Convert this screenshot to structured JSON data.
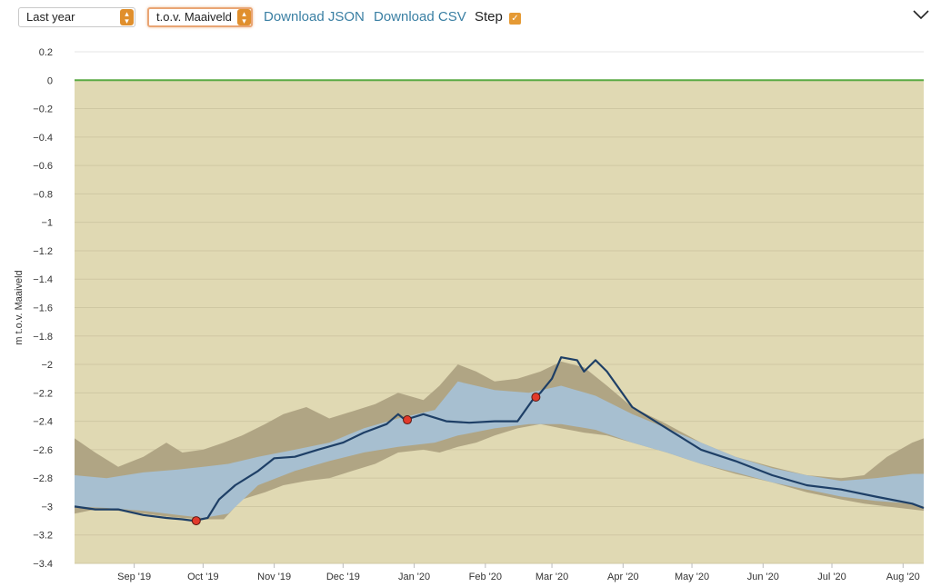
{
  "toolbar": {
    "period_select": {
      "value": "Last year"
    },
    "reference_select": {
      "value": "t.o.v. Maaiveld"
    },
    "download_json": "Download JSON",
    "download_csv": "Download CSV",
    "step_label": "Step",
    "step_checked": true
  },
  "chart_data": {
    "type": "area",
    "title": "",
    "ylabel": "m t.o.v. Maaiveld",
    "xlabel": "",
    "ylim": [
      -3.4,
      0.2
    ],
    "xlim": [
      "2019-08-06",
      "2020-08-10"
    ],
    "yticks": [
      "0.2",
      "0",
      "−0.2",
      "−0.4",
      "−0.6",
      "−0.8",
      "−1",
      "−1.2",
      "−1.4",
      "−1.6",
      "−1.8",
      "−2",
      "−2.2",
      "−2.4",
      "−2.6",
      "−2.8",
      "−3",
      "−3.2",
      "−3.4"
    ],
    "ytick_values": [
      0.2,
      0,
      -0.2,
      -0.4,
      -0.6,
      -0.8,
      -1,
      -1.2,
      -1.4,
      -1.6,
      -1.8,
      -2,
      -2.2,
      -2.4,
      -2.6,
      -2.8,
      -3,
      -3.2,
      -3.4
    ],
    "xticks": [
      "Sep '19",
      "Oct '19",
      "Nov '19",
      "Dec '19",
      "Jan '20",
      "Feb '20",
      "Mar '20",
      "Apr '20",
      "May '20",
      "Jun '20",
      "Jul '20",
      "Aug '20"
    ],
    "xtick_dates": [
      "2019-09-01",
      "2019-10-01",
      "2019-11-01",
      "2019-12-01",
      "2020-01-01",
      "2020-02-01",
      "2020-03-01",
      "2020-04-01",
      "2020-05-01",
      "2020-06-01",
      "2020-07-01",
      "2020-08-01"
    ],
    "colors": {
      "plot_background": "#e0d9b3",
      "outer_band": "#b0a584",
      "inner_band": "#a7bfd0",
      "line": "#1e3f66",
      "surface_line": "#5aaa44",
      "marker": "#e23a2b"
    },
    "surface_level": 0,
    "series": [
      {
        "kind": "outer_band",
        "points": [
          [
            "2019-08-06",
            -2.52,
            -3.05
          ],
          [
            "2019-08-15",
            -2.62,
            -3.02
          ],
          [
            "2019-08-25",
            -2.72,
            -3.03
          ],
          [
            "2019-09-05",
            -2.65,
            -3.05
          ],
          [
            "2019-09-15",
            -2.55,
            -3.07
          ],
          [
            "2019-09-22",
            -2.62,
            -3.08
          ],
          [
            "2019-10-01",
            -2.6,
            -3.09
          ],
          [
            "2019-10-10",
            -2.55,
            -3.09
          ],
          [
            "2019-10-18",
            -2.5,
            -2.95
          ],
          [
            "2019-10-28",
            -2.42,
            -2.9
          ],
          [
            "2019-11-05",
            -2.35,
            -2.85
          ],
          [
            "2019-11-15",
            -2.3,
            -2.82
          ],
          [
            "2019-11-25",
            -2.38,
            -2.8
          ],
          [
            "2019-12-05",
            -2.33,
            -2.75
          ],
          [
            "2019-12-15",
            -2.28,
            -2.7
          ],
          [
            "2019-12-25",
            -2.2,
            -2.62
          ],
          [
            "2020-01-05",
            -2.25,
            -2.6
          ],
          [
            "2020-01-12",
            -2.15,
            -2.62
          ],
          [
            "2020-01-20",
            -2.0,
            -2.58
          ],
          [
            "2020-01-28",
            -2.05,
            -2.55
          ],
          [
            "2020-02-05",
            -2.12,
            -2.5
          ],
          [
            "2020-02-15",
            -2.1,
            -2.45
          ],
          [
            "2020-02-25",
            -2.05,
            -2.42
          ],
          [
            "2020-03-05",
            -1.98,
            -2.45
          ],
          [
            "2020-03-15",
            -2.02,
            -2.48
          ],
          [
            "2020-03-25",
            -2.15,
            -2.5
          ],
          [
            "2020-04-05",
            -2.3,
            -2.55
          ],
          [
            "2020-04-20",
            -2.42,
            -2.62
          ],
          [
            "2020-05-05",
            -2.55,
            -2.7
          ],
          [
            "2020-05-20",
            -2.65,
            -2.77
          ],
          [
            "2020-06-05",
            -2.72,
            -2.83
          ],
          [
            "2020-06-20",
            -2.78,
            -2.9
          ],
          [
            "2020-07-05",
            -2.8,
            -2.95
          ],
          [
            "2020-07-15",
            -2.78,
            -2.98
          ],
          [
            "2020-07-25",
            -2.65,
            -3.0
          ],
          [
            "2020-08-05",
            -2.55,
            -3.02
          ],
          [
            "2020-08-10",
            -2.52,
            -3.03
          ]
        ]
      },
      {
        "kind": "inner_band",
        "points": [
          [
            "2019-08-06",
            -2.78,
            -3.0
          ],
          [
            "2019-08-20",
            -2.8,
            -3.01
          ],
          [
            "2019-09-05",
            -2.76,
            -3.03
          ],
          [
            "2019-09-20",
            -2.74,
            -3.06
          ],
          [
            "2019-10-01",
            -2.72,
            -3.08
          ],
          [
            "2019-10-12",
            -2.7,
            -3.05
          ],
          [
            "2019-10-25",
            -2.65,
            -2.85
          ],
          [
            "2019-11-10",
            -2.6,
            -2.75
          ],
          [
            "2019-11-25",
            -2.55,
            -2.68
          ],
          [
            "2019-12-10",
            -2.45,
            -2.62
          ],
          [
            "2019-12-25",
            -2.38,
            -2.58
          ],
          [
            "2020-01-10",
            -2.32,
            -2.55
          ],
          [
            "2020-01-20",
            -2.12,
            -2.5
          ],
          [
            "2020-02-05",
            -2.18,
            -2.45
          ],
          [
            "2020-02-20",
            -2.2,
            -2.42
          ],
          [
            "2020-03-05",
            -2.15,
            -2.42
          ],
          [
            "2020-03-20",
            -2.22,
            -2.46
          ],
          [
            "2020-04-05",
            -2.35,
            -2.55
          ],
          [
            "2020-04-20",
            -2.45,
            -2.62
          ],
          [
            "2020-05-05",
            -2.55,
            -2.7
          ],
          [
            "2020-05-20",
            -2.65,
            -2.76
          ],
          [
            "2020-06-05",
            -2.73,
            -2.83
          ],
          [
            "2020-06-20",
            -2.78,
            -2.88
          ],
          [
            "2020-07-05",
            -2.82,
            -2.93
          ],
          [
            "2020-07-20",
            -2.8,
            -2.96
          ],
          [
            "2020-08-05",
            -2.77,
            -2.98
          ],
          [
            "2020-08-10",
            -2.77,
            -3.0
          ]
        ]
      },
      {
        "kind": "line",
        "points": [
          [
            "2019-08-06",
            -3.0
          ],
          [
            "2019-08-15",
            -3.02
          ],
          [
            "2019-08-25",
            -3.02
          ],
          [
            "2019-09-05",
            -3.06
          ],
          [
            "2019-09-15",
            -3.08
          ],
          [
            "2019-09-22",
            -3.09
          ],
          [
            "2019-09-27",
            -3.1
          ],
          [
            "2019-10-03",
            -3.08
          ],
          [
            "2019-10-08",
            -2.95
          ],
          [
            "2019-10-15",
            -2.85
          ],
          [
            "2019-10-25",
            -2.75
          ],
          [
            "2019-11-01",
            -2.66
          ],
          [
            "2019-11-10",
            -2.65
          ],
          [
            "2019-11-20",
            -2.6
          ],
          [
            "2019-12-01",
            -2.55
          ],
          [
            "2019-12-10",
            -2.48
          ],
          [
            "2019-12-20",
            -2.42
          ],
          [
            "2019-12-25",
            -2.35
          ],
          [
            "2019-12-28",
            -2.39
          ],
          [
            "2020-01-05",
            -2.35
          ],
          [
            "2020-01-15",
            -2.4
          ],
          [
            "2020-01-25",
            -2.41
          ],
          [
            "2020-02-05",
            -2.4
          ],
          [
            "2020-02-15",
            -2.4
          ],
          [
            "2020-02-22",
            -2.24
          ],
          [
            "2020-02-25",
            -2.2
          ],
          [
            "2020-03-01",
            -2.1
          ],
          [
            "2020-03-05",
            -1.95
          ],
          [
            "2020-03-12",
            -1.97
          ],
          [
            "2020-03-15",
            -2.05
          ],
          [
            "2020-03-20",
            -1.97
          ],
          [
            "2020-03-25",
            -2.05
          ],
          [
            "2020-04-05",
            -2.3
          ],
          [
            "2020-04-20",
            -2.45
          ],
          [
            "2020-05-05",
            -2.6
          ],
          [
            "2020-05-20",
            -2.68
          ],
          [
            "2020-06-05",
            -2.78
          ],
          [
            "2020-06-20",
            -2.85
          ],
          [
            "2020-07-05",
            -2.88
          ],
          [
            "2020-07-20",
            -2.93
          ],
          [
            "2020-08-05",
            -2.98
          ],
          [
            "2020-08-10",
            -3.01
          ]
        ]
      },
      {
        "kind": "markers",
        "points": [
          [
            "2019-09-28",
            -3.1
          ],
          [
            "2019-12-29",
            -2.39
          ],
          [
            "2020-02-23",
            -2.23
          ]
        ]
      }
    ]
  }
}
